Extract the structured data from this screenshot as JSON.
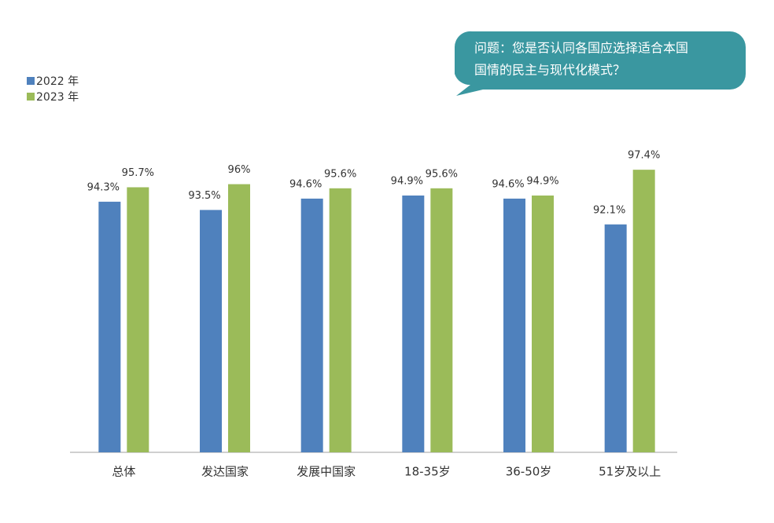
{
  "chart_data": {
    "type": "bar",
    "annotation": [
      "问题：您是否认同各国应选择适合本国",
      "国情的民主与现代化模式？"
    ],
    "categories": [
      "总体",
      "发达国家",
      "发展中国家",
      "18-35岁",
      "36-50岁",
      "51岁及以上"
    ],
    "series": [
      {
        "name": "2022 年",
        "color": "#4f81bd",
        "values": [
          94.3,
          93.5,
          94.6,
          94.9,
          94.6,
          92.1
        ],
        "value_labels": [
          "94.3%",
          "93.5%",
          "94.6%",
          "94.9%",
          "94.6%",
          "92.1%"
        ]
      },
      {
        "name": "2023 年",
        "color": "#9bbb59",
        "values": [
          95.7,
          96,
          95.6,
          95.6,
          94.9,
          97.4
        ],
        "value_labels": [
          "95.7%",
          "96%",
          "95.6%",
          "95.6%",
          "94.9%",
          "97.4%"
        ]
      }
    ],
    "ylim": [
      70,
      100
    ],
    "legend": "top-left",
    "grid": false
  }
}
